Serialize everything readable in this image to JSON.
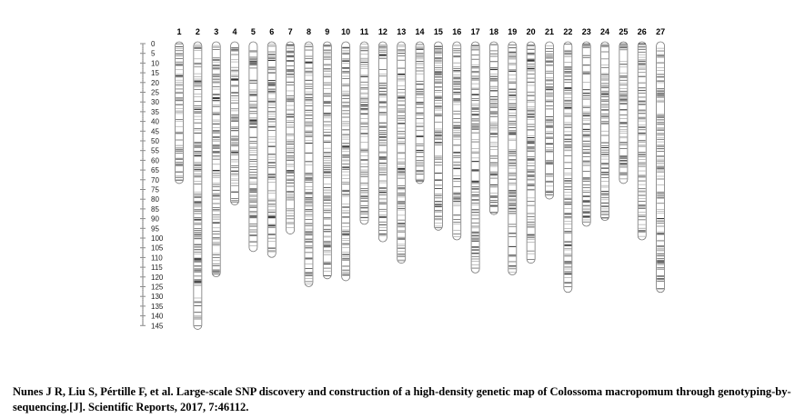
{
  "chart_data": {
    "type": "linkage-map",
    "ylim": [
      0,
      145
    ],
    "scale_ticks": [
      0,
      5,
      10,
      15,
      20,
      25,
      30,
      35,
      40,
      45,
      50,
      55,
      60,
      65,
      70,
      75,
      80,
      85,
      90,
      95,
      100,
      105,
      110,
      115,
      120,
      125,
      130,
      135,
      140,
      145
    ],
    "groups": [
      {
        "label": "1",
        "length": 71
      },
      {
        "label": "2",
        "length": 146
      },
      {
        "label": "3",
        "length": 119
      },
      {
        "label": "4",
        "length": 82
      },
      {
        "label": "5",
        "length": 106
      },
      {
        "label": "6",
        "length": 109
      },
      {
        "label": "7",
        "length": 97
      },
      {
        "label": "8",
        "length": 124
      },
      {
        "label": "9",
        "length": 120
      },
      {
        "label": "10",
        "length": 121
      },
      {
        "label": "11",
        "length": 92
      },
      {
        "label": "12",
        "length": 101
      },
      {
        "label": "13",
        "length": 112
      },
      {
        "label": "14",
        "length": 71
      },
      {
        "label": "15",
        "length": 95
      },
      {
        "label": "16",
        "length": 100
      },
      {
        "label": "17",
        "length": 117
      },
      {
        "label": "18",
        "length": 87
      },
      {
        "label": "19",
        "length": 118
      },
      {
        "label": "20",
        "length": 112
      },
      {
        "label": "21",
        "length": 79
      },
      {
        "label": "22",
        "length": 127
      },
      {
        "label": "23",
        "length": 93
      },
      {
        "label": "24",
        "length": 90
      },
      {
        "label": "25",
        "length": 71
      },
      {
        "label": "26",
        "length": 100
      },
      {
        "label": "27",
        "length": 127
      }
    ]
  },
  "caption": "Nunes J R, Liu S, Pértille F, et al. Large-scale SNP discovery and construction of a high-density genetic map of Colossoma macropomum through genotyping-by-sequencing.[J]. Scientific Reports, 2017, 7:46112."
}
